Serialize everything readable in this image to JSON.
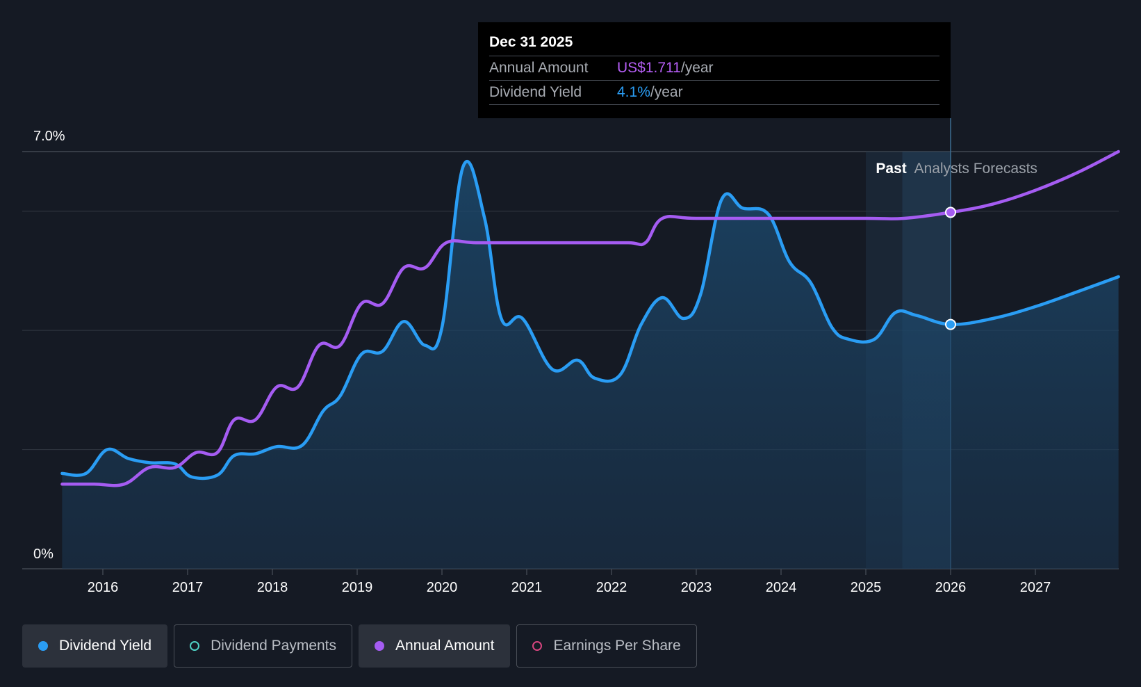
{
  "chart_data": {
    "type": "line",
    "y_axis": {
      "top_label": "7.0%",
      "bottom_label": "0%",
      "min": 0,
      "max": 7.0,
      "grid_values": [
        2,
        4,
        6,
        7
      ]
    },
    "x_axis": {
      "ticks": [
        "2016",
        "2017",
        "2018",
        "2019",
        "2020",
        "2021",
        "2022",
        "2023",
        "2024",
        "2025",
        "2026",
        "2027"
      ],
      "min": 2015.0,
      "max": 2027.98
    },
    "regions": {
      "past_label": "Past",
      "forecast_label": "Analysts Forecasts"
    },
    "series": [
      {
        "name": "Dividend Yield",
        "color": "#2a9df4",
        "points": [
          [
            2015.52,
            1.6
          ],
          [
            2015.8,
            1.6
          ],
          [
            2016.05,
            2.0
          ],
          [
            2016.3,
            1.85
          ],
          [
            2016.55,
            1.78
          ],
          [
            2016.85,
            1.76
          ],
          [
            2017.05,
            1.54
          ],
          [
            2017.35,
            1.57
          ],
          [
            2017.55,
            1.9
          ],
          [
            2017.8,
            1.93
          ],
          [
            2018.05,
            2.05
          ],
          [
            2018.35,
            2.07
          ],
          [
            2018.6,
            2.65
          ],
          [
            2018.8,
            2.9
          ],
          [
            2019.05,
            3.6
          ],
          [
            2019.3,
            3.65
          ],
          [
            2019.55,
            4.15
          ],
          [
            2019.8,
            3.75
          ],
          [
            2020.0,
            4.05
          ],
          [
            2020.25,
            6.75
          ],
          [
            2020.5,
            5.9
          ],
          [
            2020.7,
            4.2
          ],
          [
            2020.95,
            4.2
          ],
          [
            2021.3,
            3.35
          ],
          [
            2021.6,
            3.5
          ],
          [
            2021.8,
            3.2
          ],
          [
            2022.1,
            3.25
          ],
          [
            2022.35,
            4.1
          ],
          [
            2022.6,
            4.55
          ],
          [
            2022.85,
            4.2
          ],
          [
            2023.05,
            4.6
          ],
          [
            2023.3,
            6.2
          ],
          [
            2023.55,
            6.05
          ],
          [
            2023.85,
            5.95
          ],
          [
            2024.1,
            5.15
          ],
          [
            2024.35,
            4.8
          ],
          [
            2024.6,
            4.05
          ],
          [
            2024.8,
            3.85
          ],
          [
            2025.1,
            3.85
          ],
          [
            2025.35,
            4.3
          ],
          [
            2025.6,
            4.25
          ],
          [
            2026.0,
            4.1
          ],
          [
            2026.5,
            4.2
          ],
          [
            2027.0,
            4.4
          ],
          [
            2027.5,
            4.65
          ],
          [
            2027.98,
            4.9
          ]
        ]
      },
      {
        "name": "Annual Amount",
        "color": "#a55cf2",
        "points": [
          [
            2015.52,
            1.42
          ],
          [
            2015.9,
            1.42
          ],
          [
            2016.25,
            1.42
          ],
          [
            2016.55,
            1.7
          ],
          [
            2016.85,
            1.7
          ],
          [
            2017.1,
            1.95
          ],
          [
            2017.35,
            1.95
          ],
          [
            2017.55,
            2.5
          ],
          [
            2017.8,
            2.5
          ],
          [
            2018.05,
            3.05
          ],
          [
            2018.3,
            3.05
          ],
          [
            2018.55,
            3.75
          ],
          [
            2018.8,
            3.75
          ],
          [
            2019.05,
            4.45
          ],
          [
            2019.3,
            4.45
          ],
          [
            2019.55,
            5.05
          ],
          [
            2019.8,
            5.05
          ],
          [
            2020.05,
            5.47
          ],
          [
            2020.4,
            5.47
          ],
          [
            2021.0,
            5.47
          ],
          [
            2021.6,
            5.47
          ],
          [
            2022.2,
            5.47
          ],
          [
            2022.4,
            5.47
          ],
          [
            2022.6,
            5.88
          ],
          [
            2023.0,
            5.88
          ],
          [
            2024.0,
            5.88
          ],
          [
            2025.0,
            5.88
          ],
          [
            2025.45,
            5.88
          ],
          [
            2026.0,
            5.98
          ],
          [
            2026.5,
            6.12
          ],
          [
            2027.0,
            6.35
          ],
          [
            2027.5,
            6.65
          ],
          [
            2027.98,
            7.0
          ]
        ]
      }
    ],
    "highlight": {
      "x": 2026.0,
      "yield_value": 4.1,
      "amount_value": 5.98
    }
  },
  "tooltip": {
    "date": "Dec 31 2025",
    "annual_label": "Annual Amount",
    "annual_value": "US$1.711",
    "annual_unit": "/year",
    "yield_label": "Dividend Yield",
    "yield_value": "4.1%",
    "yield_unit": "/year"
  },
  "legend": [
    {
      "label": "Dividend Yield",
      "color": "#2a9df4",
      "active": true,
      "filled": true
    },
    {
      "label": "Dividend Payments",
      "color": "#4fd1c5",
      "active": false,
      "filled": false
    },
    {
      "label": "Annual Amount",
      "color": "#a55cf2",
      "active": true,
      "filled": true
    },
    {
      "label": "Earnings Per Share",
      "color": "#d6457f",
      "active": false,
      "filled": false
    }
  ]
}
